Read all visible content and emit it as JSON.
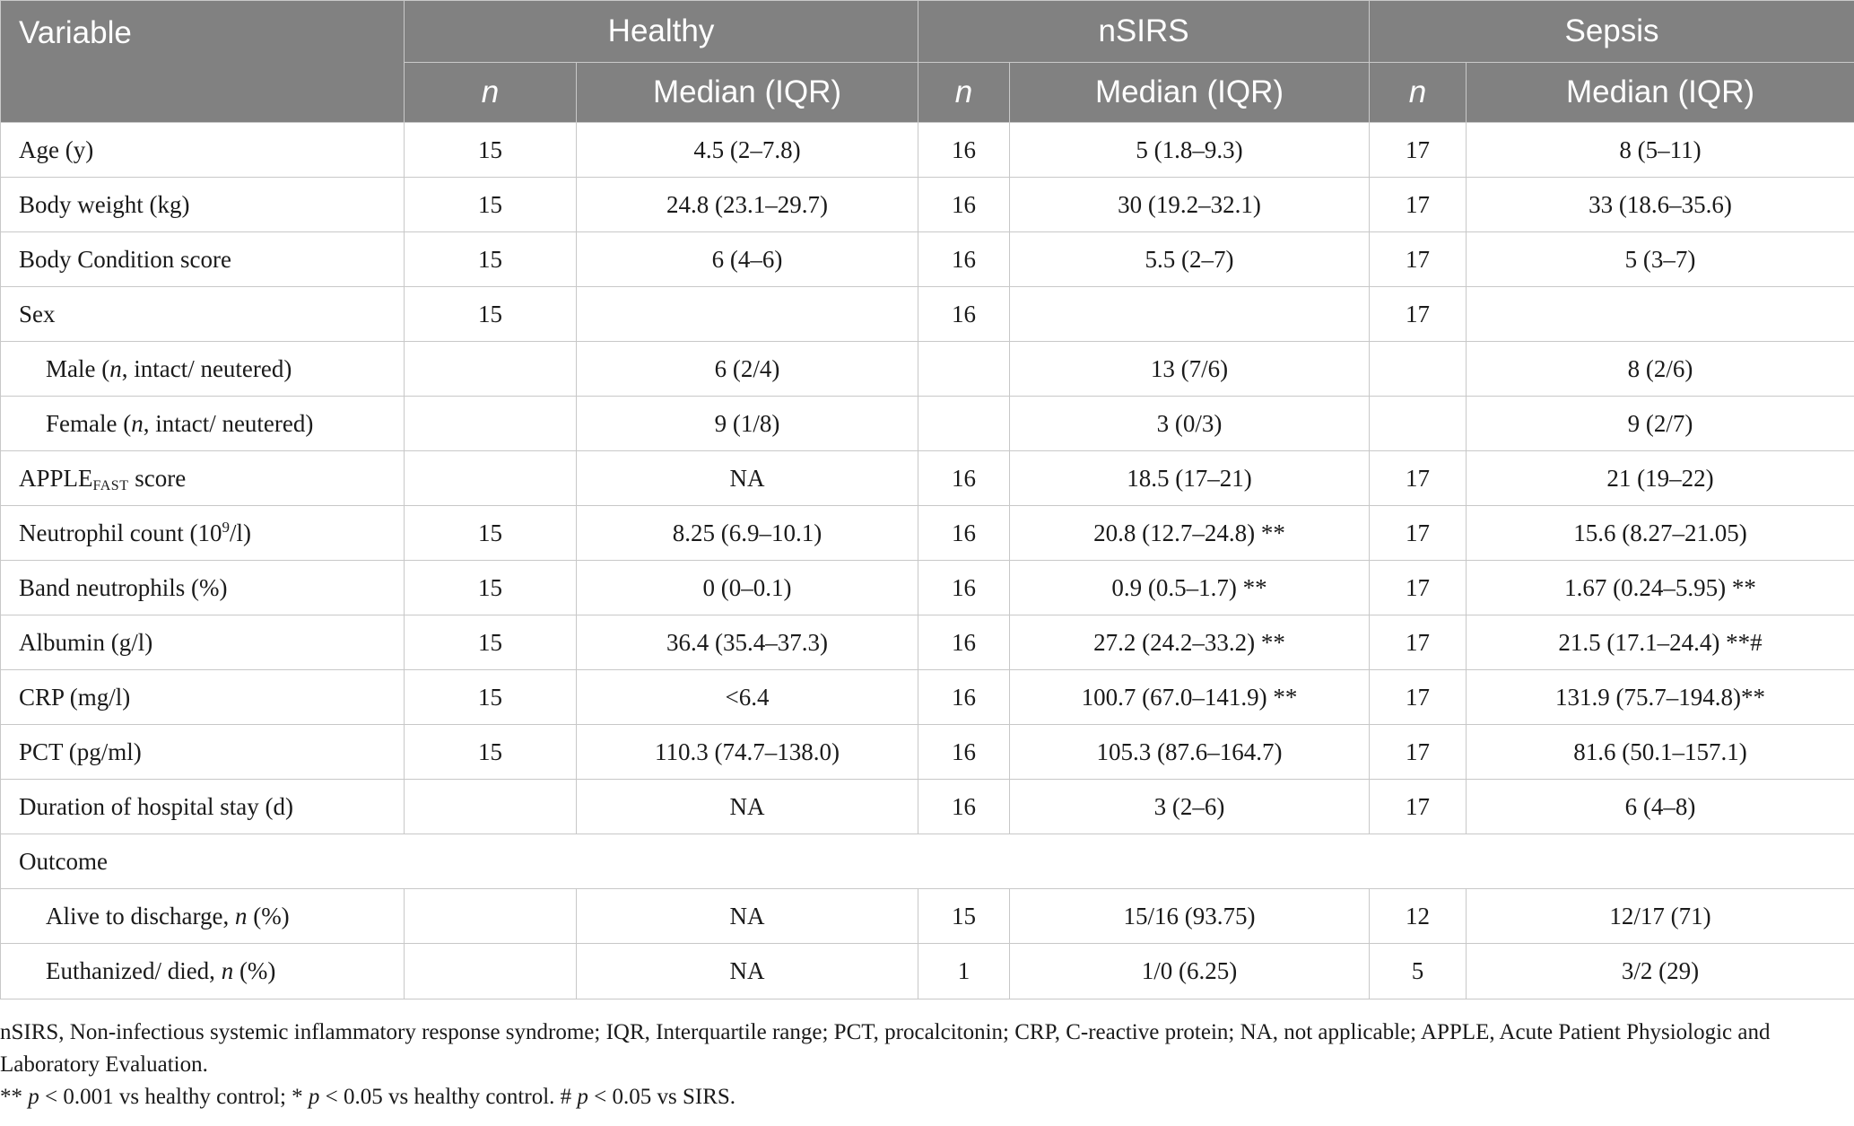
{
  "header": {
    "variable": "Variable",
    "groups": [
      "Healthy",
      "nSIRS",
      "Sepsis"
    ],
    "n_label": "n",
    "median_label": "Median (IQR)"
  },
  "rows": [
    {
      "label": "Age (y)",
      "cells": [
        "15",
        "4.5 (2–7.8)",
        "16",
        "5 (1.8–9.3)",
        "17",
        "8 (5–11)"
      ]
    },
    {
      "label": "Body weight (kg)",
      "cells": [
        "15",
        "24.8 (23.1–29.7)",
        "16",
        "30 (19.2–32.1)",
        "17",
        "33 (18.6–35.6)"
      ]
    },
    {
      "label": "Body Condition score",
      "cells": [
        "15",
        "6 (4–6)",
        "16",
        "5.5 (2–7)",
        "17",
        "5 (3–7)"
      ]
    },
    {
      "label": "Sex",
      "cells": [
        "15",
        "",
        "16",
        "",
        "17",
        ""
      ]
    },
    {
      "label_pre": "Male (",
      "label_it": "n",
      "label_post": ", intact/ neutered)",
      "cells": [
        "",
        "6 (2/4)",
        "",
        "13 (7/6)",
        "",
        "8 (2/6)"
      ]
    },
    {
      "label_pre": "Female (",
      "label_it": "n",
      "label_post": ", intact/ neutered)",
      "cells": [
        "",
        "9 (1/8)",
        "",
        "3 (0/3)",
        "",
        "9 (2/7)"
      ]
    },
    {
      "label_main": "APPLE",
      "label_sub": "FAST",
      "label_post": " score",
      "cells": [
        "",
        "NA",
        "16",
        "18.5 (17–21)",
        "17",
        "21 (19–22)"
      ]
    },
    {
      "label_main": "Neutrophil count (10",
      "label_sup": "9",
      "label_post": "/l)",
      "cells": [
        "15",
        "8.25 (6.9–10.1)",
        "16",
        "20.8 (12.7–24.8) **",
        "17",
        "15.6 (8.27–21.05)"
      ]
    },
    {
      "label": "Band neutrophils (%)",
      "cells": [
        "15",
        "0 (0–0.1)",
        "16",
        "0.9 (0.5–1.7) **",
        "17",
        "1.67 (0.24–5.95) **"
      ]
    },
    {
      "label": "Albumin (g/l)",
      "cells": [
        "15",
        "36.4 (35.4–37.3)",
        "16",
        "27.2 (24.2–33.2) **",
        "17",
        "21.5 (17.1–24.4) **#"
      ]
    },
    {
      "label": "CRP (mg/l)",
      "cells": [
        "15",
        "<6.4",
        "16",
        "100.7 (67.0–141.9) **",
        "17",
        "131.9 (75.7–194.8)**"
      ]
    },
    {
      "label": "PCT (pg/ml)",
      "cells": [
        "15",
        "110.3 (74.7–138.0)",
        "16",
        "105.3 (87.6–164.7)",
        "17",
        "81.6 (50.1–157.1)"
      ]
    },
    {
      "label": "Duration of hospital stay (d)",
      "cells": [
        "",
        "NA",
        "16",
        "3 (2–6)",
        "17",
        "6 (4–8)"
      ]
    },
    {
      "label": "Outcome"
    },
    {
      "label_pre": "Alive to discharge, ",
      "label_it": "n",
      "label_post": " (%)",
      "cells": [
        "",
        "NA",
        "15",
        "15/16 (93.75)",
        "12",
        "12/17 (71)"
      ]
    },
    {
      "label_pre": "Euthanized/ died, ",
      "label_it": "n",
      "label_post": " (%)",
      "cells": [
        "",
        "NA",
        "1",
        "1/0 (6.25)",
        "5",
        "3/2 (29)"
      ]
    }
  ],
  "footnotes": {
    "abbreviations": "nSIRS, Non-infectious systemic inflammatory response syndrome; IQR, Interquartile range; PCT, procalcitonin; CRP, C-reactive protein; NA, not applicable; APPLE, Acute Patient Physiologic and Laboratory Evaluation.",
    "sig_1a": "** ",
    "sig_1b": "p",
    "sig_1c": " < 0.001 vs healthy control; * ",
    "sig_1d": "p",
    "sig_1e": " < 0.05 vs healthy control. # ",
    "sig_1f": "p",
    "sig_1g": " < 0.05 vs SIRS."
  }
}
